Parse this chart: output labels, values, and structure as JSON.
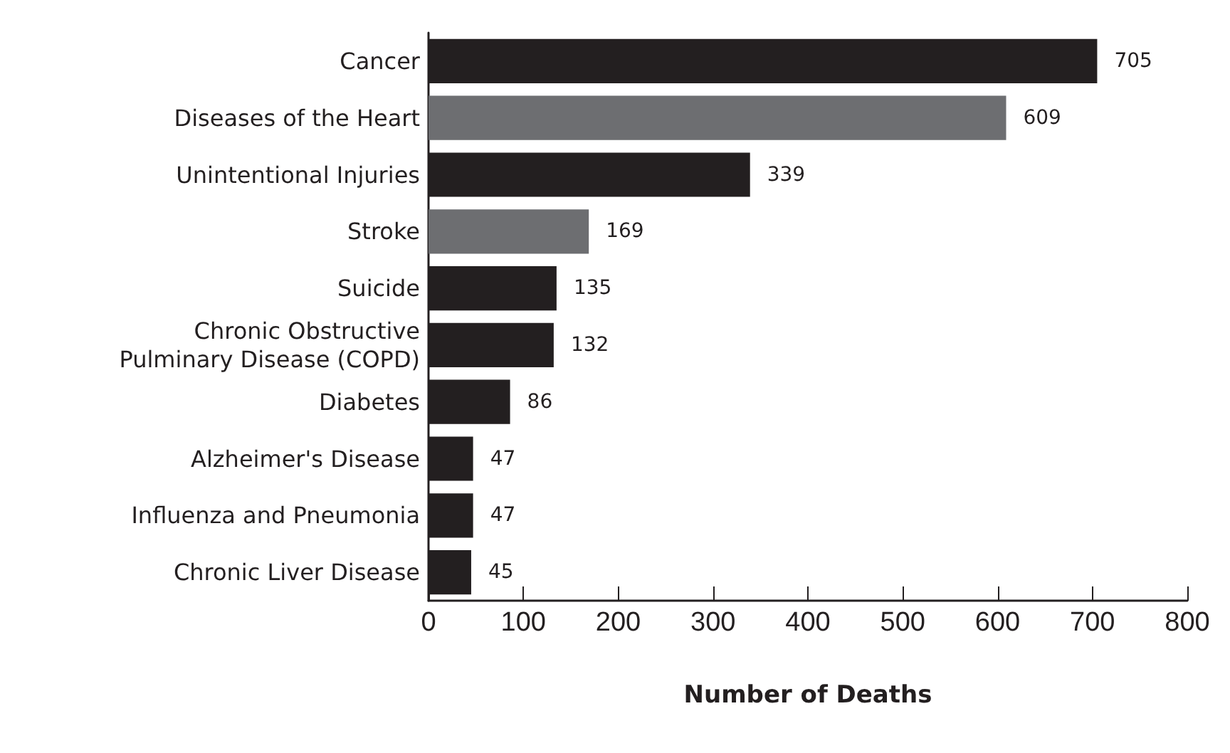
{
  "chart_data": {
    "type": "bar",
    "orientation": "horizontal",
    "xlabel": "Number of Deaths",
    "categories": [
      "Cancer",
      "Diseases of the Heart",
      "Unintentional Injuries",
      "Stroke",
      "Suicide",
      "Chronic Obstructive\nPulminary Disease (COPD)",
      "Diabetes",
      "Alzheimer's Disease",
      "Influenza and Pneumonia",
      "Chronic Liver Disease"
    ],
    "values": [
      705,
      609,
      339,
      169,
      135,
      132,
      86,
      47,
      47,
      45
    ],
    "colors": [
      "#231f20",
      "#6d6e71",
      "#231f20",
      "#6d6e71",
      "#231f20",
      "#231f20",
      "#231f20",
      "#231f20",
      "#231f20",
      "#231f20"
    ],
    "xlim": [
      0,
      800
    ],
    "xticks": [
      0,
      100,
      200,
      300,
      400,
      500,
      600,
      700,
      800
    ],
    "data_labels": true
  }
}
